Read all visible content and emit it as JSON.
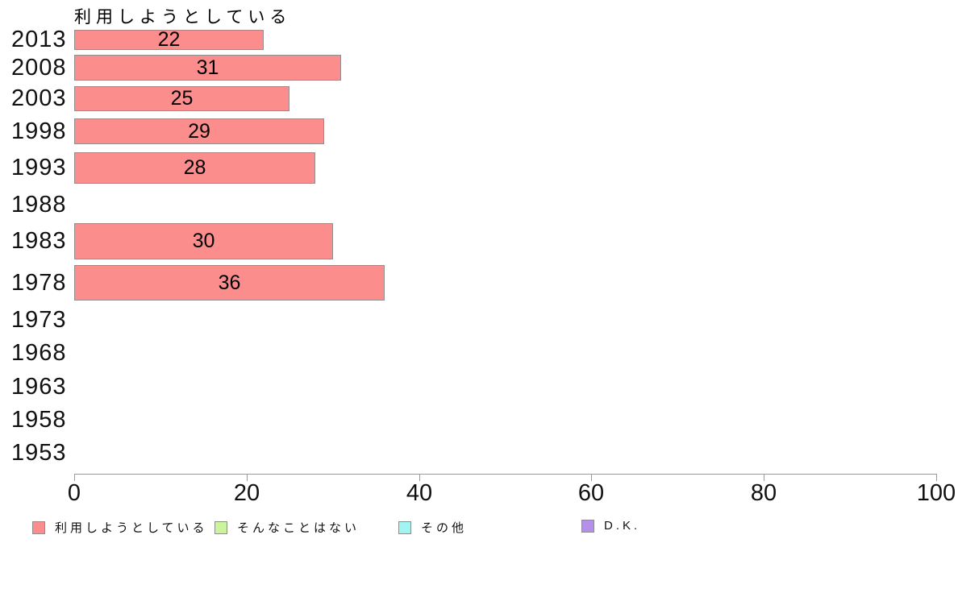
{
  "chart_data": {
    "type": "bar",
    "orientation": "horizontal",
    "title": "利用しようとしている",
    "xlabel": "",
    "ylabel": "",
    "categories": [
      "2013",
      "2008",
      "2003",
      "1998",
      "1993",
      "1988",
      "1983",
      "1978",
      "1973",
      "1968",
      "1963",
      "1958",
      "1953"
    ],
    "values": [
      22,
      31,
      25,
      29,
      28,
      null,
      30,
      36,
      null,
      null,
      null,
      null,
      null
    ],
    "xlim": [
      0,
      100
    ],
    "x_ticks": [
      0,
      20,
      40,
      60,
      80,
      100
    ],
    "grid": false,
    "bar_color": "#fc8d8d",
    "bar_border_color": "#8f8f8f",
    "axis_color": "#9a9a9a",
    "legend_position": "bottom",
    "legend": [
      {
        "label": "利用しようとしている",
        "color": "#fc8d8d"
      },
      {
        "label": "そんなことはない",
        "color": "#ccf49c"
      },
      {
        "label": "その他",
        "color": "#a2f4f0"
      },
      {
        "label": "D.K.",
        "color": "#b590ea"
      }
    ]
  }
}
